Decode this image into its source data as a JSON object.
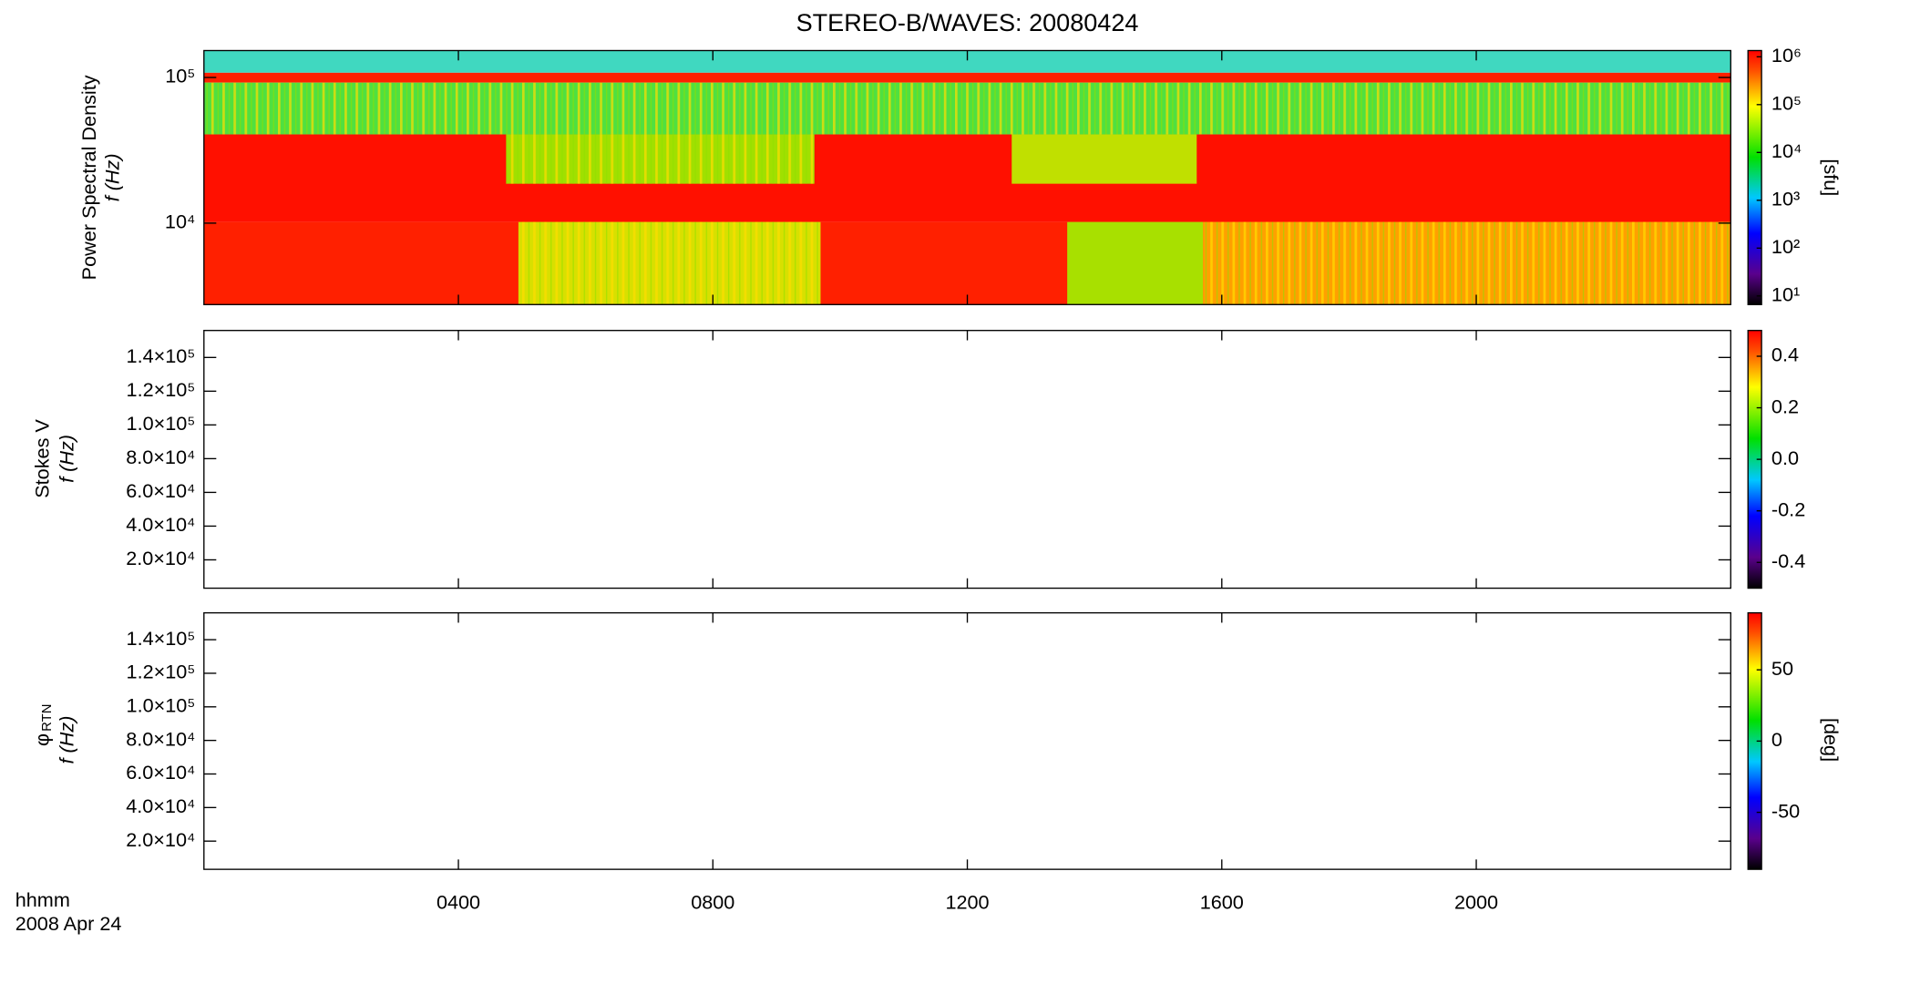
{
  "chart_data": [
    {
      "type": "heatmap",
      "title": "STEREO-B/WAVES: 20080424",
      "y_label": [
        "Power Spectral Density",
        "f (Hz)"
      ],
      "ylog": true,
      "ylim": [
        2760,
        153000
      ],
      "yticks": [
        {
          "value": 10000,
          "label": "10⁴"
        },
        {
          "value": 100000,
          "label": "10⁵"
        }
      ],
      "colorbar": {
        "label": "[sfu]",
        "log": true,
        "lim": [
          6.6,
          1350000
        ],
        "ticks": [
          {
            "value": 10,
            "label": "10¹"
          },
          {
            "value": 100,
            "label": "10²"
          },
          {
            "value": 1000,
            "label": "10³"
          },
          {
            "value": 10000,
            "label": "10⁴"
          },
          {
            "value": 100000,
            "label": "10⁵"
          },
          {
            "value": 1000000,
            "label": "10⁶"
          }
        ]
      }
    },
    {
      "type": "heatmap",
      "y_label": [
        "Stokes V",
        "f (Hz)"
      ],
      "ylog": false,
      "ylim": [
        3200,
        156000
      ],
      "yticks": [
        {
          "value": 20000,
          "label": "2.0×10⁴"
        },
        {
          "value": 40000,
          "label": "4.0×10⁴"
        },
        {
          "value": 60000,
          "label": "6.0×10⁴"
        },
        {
          "value": 80000,
          "label": "8.0×10⁴"
        },
        {
          "value": 100000,
          "label": "1.0×10⁵"
        },
        {
          "value": 120000,
          "label": "1.2×10⁵"
        },
        {
          "value": 140000,
          "label": "1.4×10⁵"
        }
      ],
      "colorbar": {
        "log": false,
        "lim": [
          -0.5,
          0.5
        ],
        "ticks": [
          -0.4,
          -0.2,
          {
            "value": 0,
            "label": "0.0"
          },
          0.2,
          0.4
        ]
      }
    },
    {
      "type": "heatmap",
      "y_label": [
        "φ",
        "f (Hz)"
      ],
      "y_label_sub": "RTN",
      "ylog": false,
      "ylim": [
        3200,
        156000
      ],
      "yticks": [
        {
          "value": 20000,
          "label": "2.0×10⁴"
        },
        {
          "value": 40000,
          "label": "4.0×10⁴"
        },
        {
          "value": 60000,
          "label": "6.0×10⁴"
        },
        {
          "value": 80000,
          "label": "8.0×10⁴"
        },
        {
          "value": 100000,
          "label": "1.0×10⁵"
        },
        {
          "value": 120000,
          "label": "1.2×10⁵"
        },
        {
          "value": 140000,
          "label": "1.4×10⁵"
        }
      ],
      "colorbar": {
        "label": "[deg]",
        "log": false,
        "lim": [
          -90,
          90
        ],
        "ticks": [
          -50,
          0,
          50
        ]
      },
      "x_label": [
        "hhmm",
        "2008 Apr 24"
      ],
      "xlim": [
        0,
        24
      ],
      "xticks": [
        {
          "value": 4,
          "label": "0400"
        },
        {
          "value": 8,
          "label": "0800"
        },
        {
          "value": 12,
          "label": "1200"
        },
        {
          "value": 16,
          "label": "1600"
        },
        {
          "value": 20,
          "label": "2000"
        }
      ]
    }
  ]
}
